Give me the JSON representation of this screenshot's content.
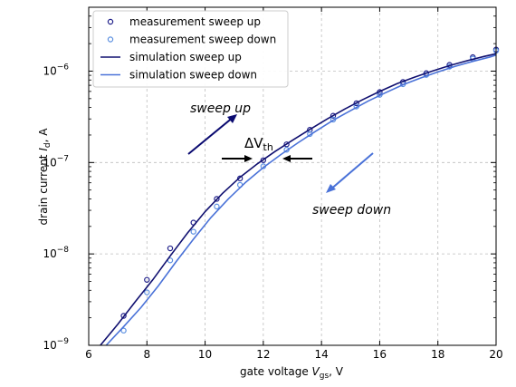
{
  "chart_data": {
    "type": "scatter",
    "title": "",
    "xlabel_main": "gate voltage ",
    "xlabel_var": "V",
    "xlabel_sub": "gs",
    "xlabel_unit": ", V",
    "ylabel_main": "drain current ",
    "ylabel_var": "I",
    "ylabel_sub": "d",
    "ylabel_unit": ", A",
    "xlim": [
      6,
      20
    ],
    "ylim": [
      1e-09,
      5e-06
    ],
    "yscale": "log",
    "grid": true,
    "legend_position": "top-left",
    "x_ticks": [
      6,
      8,
      10,
      12,
      14,
      16,
      18,
      20
    ],
    "y_ticks": [
      {
        "value": 1e-09,
        "base": "10",
        "exp": "−9"
      },
      {
        "value": 1e-08,
        "base": "10",
        "exp": "−8"
      },
      {
        "value": 1e-07,
        "base": "10",
        "exp": "−7"
      },
      {
        "value": 1e-06,
        "base": "10",
        "exp": "−6"
      }
    ],
    "series": [
      {
        "name": "measurement sweep up",
        "kind": "markers",
        "color": "#1f1f8a",
        "points": [
          [
            7.2,
            2.1e-09
          ],
          [
            8.0,
            5.2e-09
          ],
          [
            8.8,
            1.15e-08
          ],
          [
            9.6,
            2.2e-08
          ],
          [
            10.4,
            4e-08
          ],
          [
            11.2,
            6.7e-08
          ],
          [
            12.0,
            1.06e-07
          ],
          [
            12.8,
            1.58e-07
          ],
          [
            13.6,
            2.28e-07
          ],
          [
            14.4,
            3.25e-07
          ],
          [
            15.2,
            4.45e-07
          ],
          [
            16.0,
            5.9e-07
          ],
          [
            16.8,
            7.6e-07
          ],
          [
            17.6,
            9.5e-07
          ],
          [
            18.4,
            1.17e-06
          ],
          [
            19.2,
            1.42e-06
          ],
          [
            20.0,
            1.72e-06
          ]
        ]
      },
      {
        "name": "measurement sweep down",
        "kind": "markers",
        "color": "#5b8fe0",
        "points": [
          [
            7.2,
            1.45e-09
          ],
          [
            8.0,
            3.8e-09
          ],
          [
            8.8,
            8.5e-09
          ],
          [
            9.6,
            1.75e-08
          ],
          [
            10.4,
            3.3e-08
          ],
          [
            11.2,
            5.7e-08
          ],
          [
            12.0,
            9.1e-08
          ],
          [
            12.8,
            1.38e-07
          ],
          [
            13.6,
            2.05e-07
          ],
          [
            14.4,
            2.95e-07
          ],
          [
            15.2,
            4.1e-07
          ],
          [
            16.0,
            5.5e-07
          ],
          [
            16.8,
            7.2e-07
          ],
          [
            17.6,
            9.1e-07
          ],
          [
            18.4,
            1.12e-06
          ],
          [
            19.2,
            1.37e-06
          ],
          [
            20.0,
            1.67e-06
          ]
        ]
      },
      {
        "name": "simulation sweep up",
        "kind": "line",
        "color": "#101070",
        "points": [
          [
            6.4,
            1e-09
          ],
          [
            7.0,
            1.7e-09
          ],
          [
            7.6,
            3e-09
          ],
          [
            8.2,
            5.2e-09
          ],
          [
            8.8,
            9.5e-09
          ],
          [
            9.4,
            1.7e-08
          ],
          [
            10.0,
            2.9e-08
          ],
          [
            10.6,
            4.6e-08
          ],
          [
            11.2,
            6.9e-08
          ],
          [
            11.8,
            9.7e-08
          ],
          [
            12.4,
            1.32e-07
          ],
          [
            13.0,
            1.75e-07
          ],
          [
            13.6,
            2.3e-07
          ],
          [
            14.2,
            3e-07
          ],
          [
            14.8,
            3.85e-07
          ],
          [
            15.4,
            4.85e-07
          ],
          [
            16.0,
            6e-07
          ],
          [
            16.6,
            7.3e-07
          ],
          [
            17.2,
            8.6e-07
          ],
          [
            17.8,
            1e-06
          ],
          [
            18.4,
            1.15e-06
          ],
          [
            19.0,
            1.3e-06
          ],
          [
            19.6,
            1.45e-06
          ],
          [
            20.0,
            1.55e-06
          ]
        ]
      },
      {
        "name": "simulation sweep down",
        "kind": "line",
        "color": "#4a72d8",
        "points": [
          [
            6.6,
            1e-09
          ],
          [
            7.2,
            1.6e-09
          ],
          [
            7.8,
            2.6e-09
          ],
          [
            8.4,
            4.5e-09
          ],
          [
            9.0,
            8.2e-09
          ],
          [
            9.6,
            1.45e-08
          ],
          [
            10.2,
            2.5e-08
          ],
          [
            10.8,
            4e-08
          ],
          [
            11.4,
            6.1e-08
          ],
          [
            12.0,
            8.8e-08
          ],
          [
            12.6,
            1.22e-07
          ],
          [
            13.2,
            1.65e-07
          ],
          [
            13.8,
            2.2e-07
          ],
          [
            14.4,
            2.9e-07
          ],
          [
            15.0,
            3.7e-07
          ],
          [
            15.6,
            4.7e-07
          ],
          [
            16.2,
            5.8e-07
          ],
          [
            16.8,
            7.1e-07
          ],
          [
            17.4,
            8.4e-07
          ],
          [
            18.0,
            9.8e-07
          ],
          [
            18.6,
            1.13e-06
          ],
          [
            19.2,
            1.28e-06
          ],
          [
            19.8,
            1.43e-06
          ],
          [
            20.0,
            1.5e-06
          ]
        ]
      }
    ],
    "annotations": {
      "sweep_up": "sweep up",
      "sweep_down": "sweep down",
      "delta_symbol": "ΔV",
      "delta_sub": "th"
    }
  }
}
